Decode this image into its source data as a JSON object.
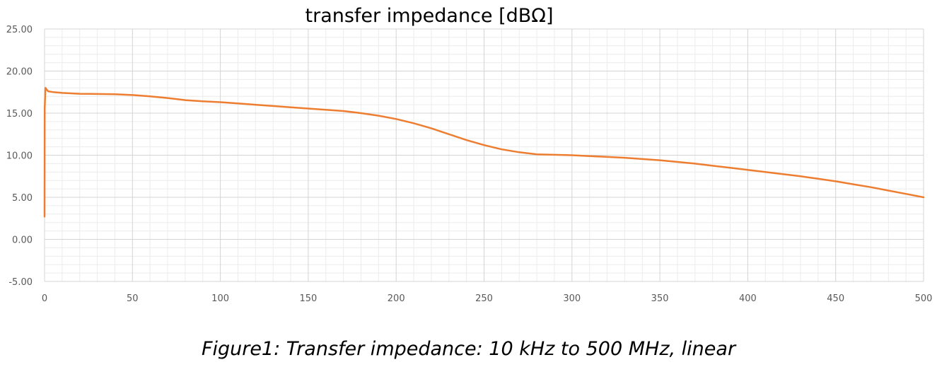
{
  "caption": "Figure1: Transfer impedance: 10 kHz to 500 MHz, linear",
  "chart_data": {
    "type": "line",
    "title": "transfer impedance [dBΩ]",
    "xlabel": "",
    "ylabel": "",
    "xlim": [
      0,
      500
    ],
    "ylim": [
      -5,
      25
    ],
    "x_ticks": [
      0,
      50,
      100,
      150,
      200,
      250,
      300,
      350,
      400,
      450,
      500
    ],
    "y_ticks": [
      -5,
      0,
      5,
      10,
      15,
      20,
      25
    ],
    "y_tick_labels": [
      "-5.00",
      "0.00",
      "5.00",
      "10.00",
      "15.00",
      "20.00",
      "25.00"
    ],
    "x_tick_labels": [
      "0",
      "50",
      "100",
      "150",
      "200",
      "250",
      "300",
      "350",
      "400",
      "450",
      "500"
    ],
    "grid": true,
    "minor_grid": true,
    "series": [
      {
        "color": "#ED7D31",
        "points": [
          [
            0.01,
            2.7
          ],
          [
            0.1,
            15.5
          ],
          [
            0.5,
            18.0
          ],
          [
            2,
            17.6
          ],
          [
            5,
            17.5
          ],
          [
            10,
            17.4
          ],
          [
            20,
            17.3
          ],
          [
            40,
            17.25
          ],
          [
            50,
            17.15
          ],
          [
            60,
            17.0
          ],
          [
            70,
            16.8
          ],
          [
            80,
            16.55
          ],
          [
            90,
            16.4
          ],
          [
            100,
            16.3
          ],
          [
            110,
            16.15
          ],
          [
            120,
            16.0
          ],
          [
            130,
            15.85
          ],
          [
            140,
            15.7
          ],
          [
            150,
            15.55
          ],
          [
            160,
            15.4
          ],
          [
            170,
            15.25
          ],
          [
            180,
            15.0
          ],
          [
            190,
            14.7
          ],
          [
            200,
            14.3
          ],
          [
            210,
            13.8
          ],
          [
            220,
            13.2
          ],
          [
            230,
            12.5
          ],
          [
            240,
            11.8
          ],
          [
            250,
            11.2
          ],
          [
            260,
            10.7
          ],
          [
            270,
            10.35
          ],
          [
            280,
            10.1
          ],
          [
            290,
            10.05
          ],
          [
            300,
            10.0
          ],
          [
            310,
            9.9
          ],
          [
            320,
            9.8
          ],
          [
            330,
            9.7
          ],
          [
            340,
            9.55
          ],
          [
            350,
            9.4
          ],
          [
            360,
            9.2
          ],
          [
            370,
            9.0
          ],
          [
            380,
            8.75
          ],
          [
            390,
            8.5
          ],
          [
            400,
            8.25
          ],
          [
            410,
            8.0
          ],
          [
            420,
            7.75
          ],
          [
            430,
            7.5
          ],
          [
            440,
            7.2
          ],
          [
            450,
            6.9
          ],
          [
            460,
            6.55
          ],
          [
            470,
            6.2
          ],
          [
            480,
            5.8
          ],
          [
            490,
            5.4
          ],
          [
            500,
            5.0
          ]
        ]
      }
    ]
  }
}
